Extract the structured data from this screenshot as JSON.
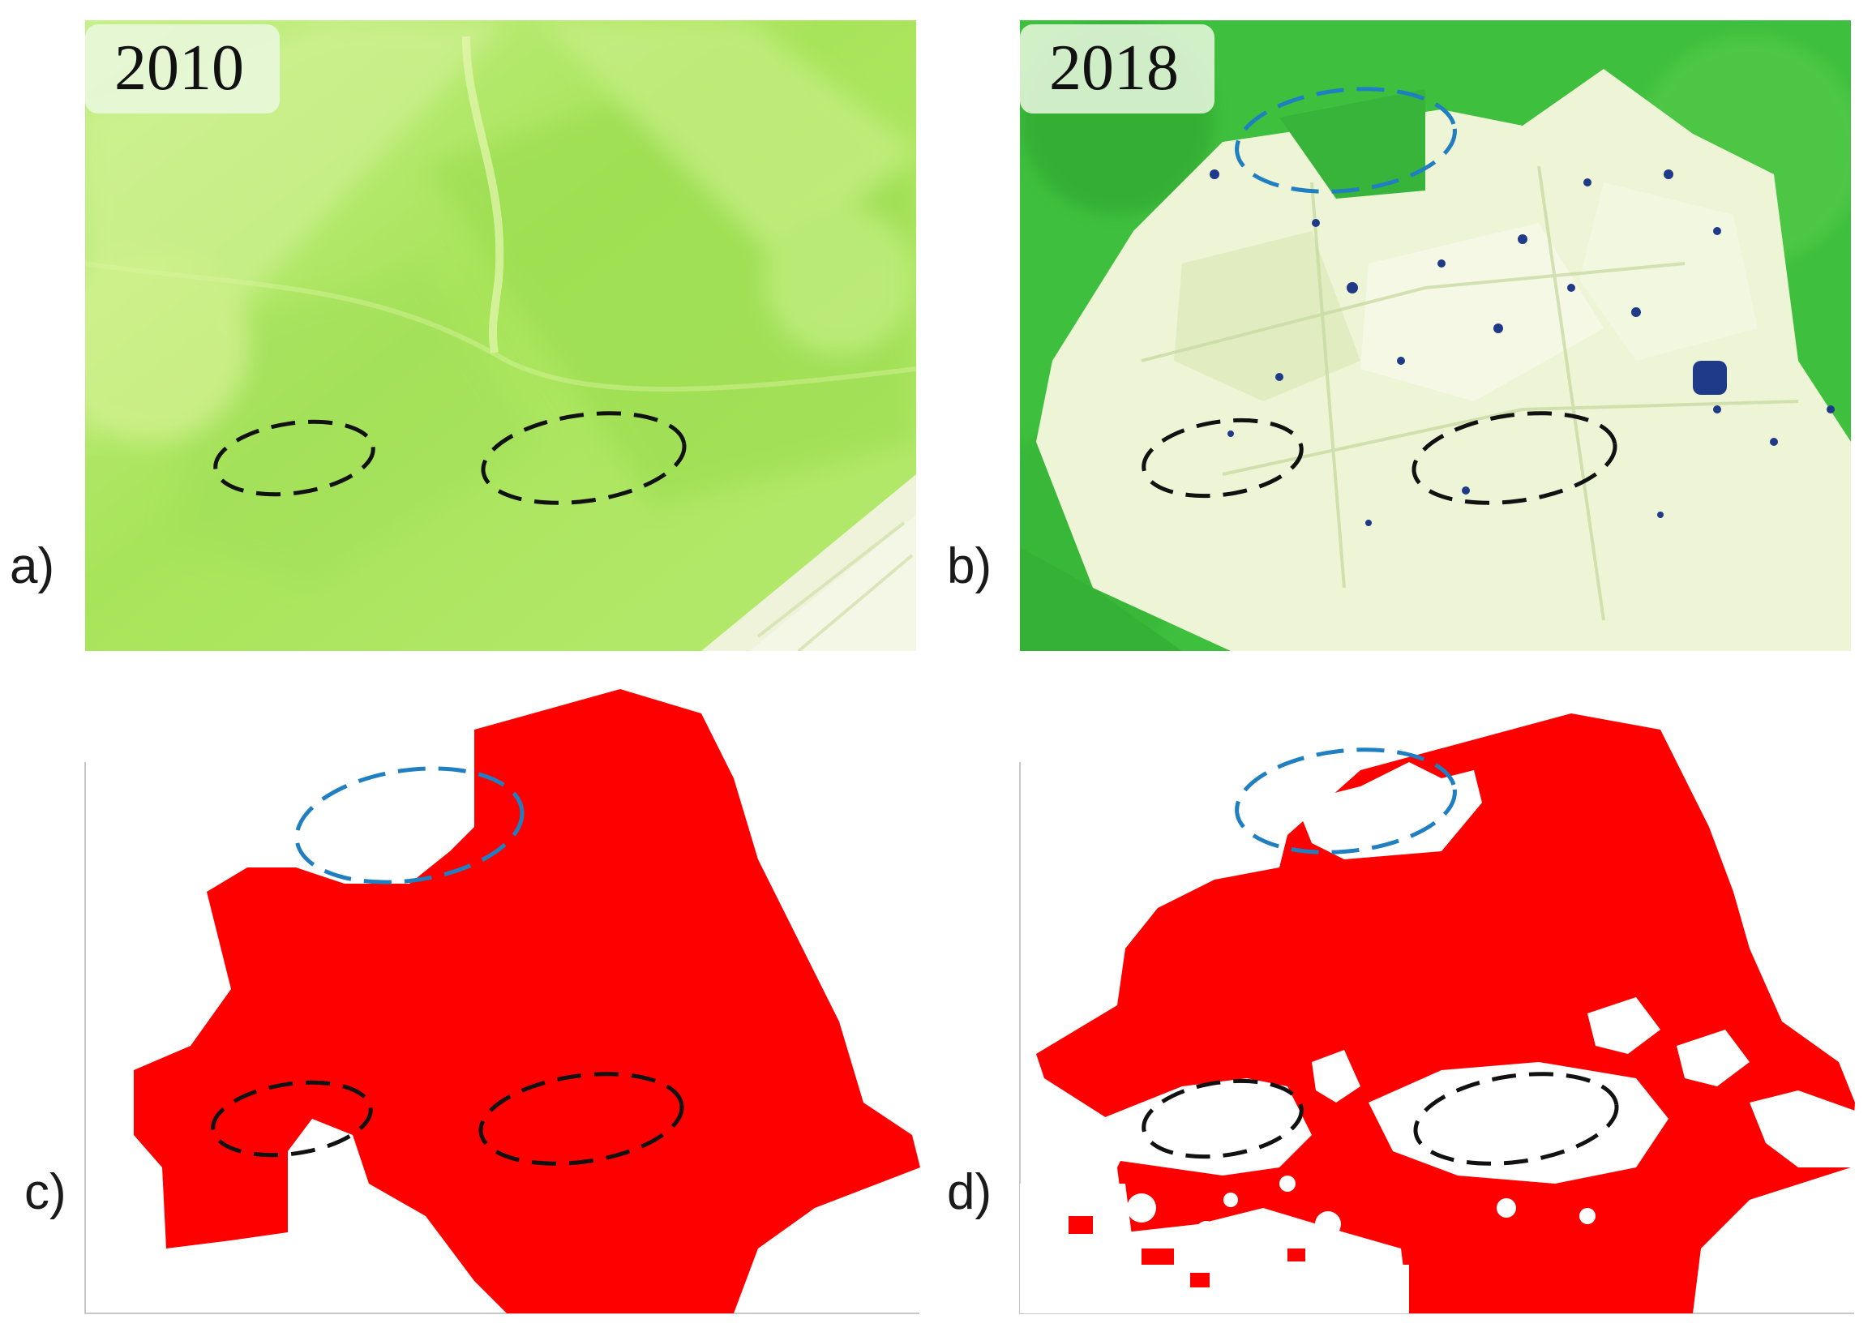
{
  "figure": {
    "panels": [
      {
        "id": "a",
        "label": "a)",
        "year_badge": "2010"
      },
      {
        "id": "b",
        "label": "b)",
        "year_badge": "2018"
      },
      {
        "id": "c",
        "label": "c)"
      },
      {
        "id": "d",
        "label": "d)"
      }
    ],
    "colors": {
      "vegetation_light": "#b8ec6a",
      "vegetation_dark": "#3fbb3a",
      "bare_ground": "#eef3d8",
      "mask_fill": "#ff0000",
      "ellipse_blue": "#1f7fc0",
      "ellipse_black": "#111111"
    }
  }
}
